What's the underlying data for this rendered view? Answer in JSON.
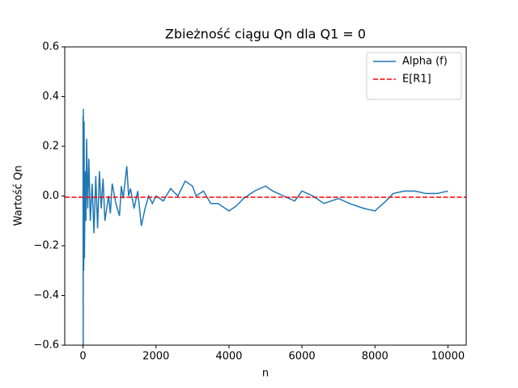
{
  "chart_data": {
    "type": "line",
    "title": "Zbieżność ciągu Qn dla Q1 = 0",
    "xlabel": "n",
    "ylabel": "Wartość Qn",
    "xlim": [
      -500,
      10500
    ],
    "xticks": [
      0,
      2000,
      4000,
      6000,
      8000,
      10000
    ],
    "ylim": [
      -0.6,
      0.6
    ],
    "yticks": [
      {
        "value": -0.6,
        "label": "−0.6"
      },
      {
        "value": -0.4,
        "label": "−0.4"
      },
      {
        "value": -0.2,
        "label": "−0.2"
      },
      {
        "value": 0,
        "label": "0.0"
      },
      0.2,
      0.4,
      0.6
    ],
    "legend": "upper right",
    "series": [
      {
        "name": "Alpha (f)",
        "color": "#1f77b4",
        "x": [
          0,
          5,
          10,
          20,
          30,
          40,
          60,
          80,
          100,
          130,
          160,
          200,
          250,
          300,
          350,
          400,
          450,
          500,
          550,
          600,
          700,
          750,
          800,
          900,
          1000,
          1050,
          1100,
          1200,
          1250,
          1300,
          1400,
          1500,
          1600,
          1700,
          1800,
          1900,
          2000,
          2200,
          2400,
          2600,
          2800,
          3000,
          3100,
          3300,
          3500,
          3700,
          4000,
          4200,
          4400,
          4700,
          5000,
          5200,
          5500,
          5800,
          6000,
          6300,
          6600,
          7000,
          7300,
          7700,
          8000,
          8300,
          8500,
          8800,
          9100,
          9400,
          9700,
          9999
        ],
        "values": [
          0.32,
          -0.6,
          0.35,
          -0.3,
          0.3,
          -0.25,
          0.1,
          -0.1,
          0.23,
          -0.05,
          0.15,
          -0.1,
          0.05,
          -0.15,
          0.08,
          -0.13,
          0.1,
          -0.05,
          0.07,
          -0.1,
          0.0,
          -0.07,
          0.05,
          -0.03,
          -0.08,
          0.04,
          -0.01,
          0.12,
          0.0,
          0.03,
          -0.05,
          0.02,
          -0.12,
          -0.05,
          0.0,
          -0.03,
          0.0,
          -0.02,
          0.03,
          0.0,
          0.06,
          0.04,
          0.0,
          0.02,
          -0.03,
          -0.03,
          -0.06,
          -0.04,
          -0.01,
          0.02,
          0.04,
          0.02,
          0.0,
          -0.02,
          0.02,
          0.0,
          -0.03,
          -0.01,
          -0.03,
          -0.05,
          -0.06,
          -0.02,
          0.01,
          0.02,
          0.02,
          0.01,
          0.01,
          0.02
        ]
      }
    ],
    "hline": {
      "name": "E[R1]",
      "color": "#ff0000",
      "value": -0.005
    }
  }
}
